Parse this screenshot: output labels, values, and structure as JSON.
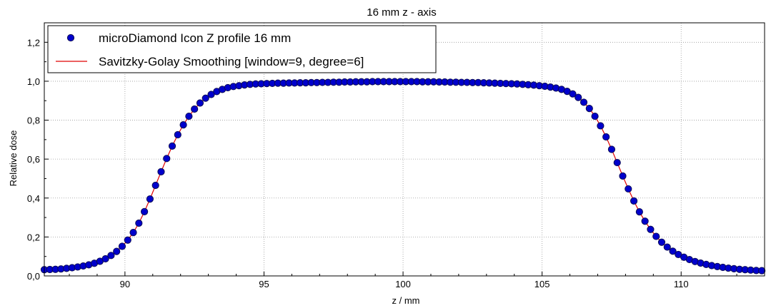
{
  "chart_data": {
    "type": "scatter",
    "title": "16 mm z - axis",
    "xlabel": "z / mm",
    "ylabel": "Relative dose",
    "xlim": [
      87.1,
      113.0
    ],
    "ylim": [
      0.0,
      1.3
    ],
    "x_ticks": [
      90,
      95,
      100,
      105,
      110
    ],
    "x_tick_labels": [
      "90",
      "95",
      "100",
      "105",
      "110"
    ],
    "y_ticks": [
      0.0,
      0.2,
      0.4,
      0.6,
      0.8,
      1.0,
      1.2
    ],
    "y_tick_labels": [
      "0,0",
      "0,2",
      "0,4",
      "0,6",
      "0,8",
      "1,0",
      "1,2"
    ],
    "grid": true,
    "legend_position": "top-left",
    "series": [
      {
        "name": "microDiamond Icon Z profile 16 mm",
        "style": "markers",
        "color": "#0000cc",
        "edge_color": "#0a0a55",
        "x": [
          87.1,
          87.3,
          87.5,
          87.7,
          87.9,
          88.1,
          88.3,
          88.5,
          88.7,
          88.9,
          89.1,
          89.3,
          89.5,
          89.7,
          89.9,
          90.1,
          90.3,
          90.5,
          90.7,
          90.9,
          91.1,
          91.3,
          91.5,
          91.7,
          91.9,
          92.1,
          92.3,
          92.5,
          92.7,
          92.9,
          93.1,
          93.3,
          93.5,
          93.7,
          93.9,
          94.1,
          94.3,
          94.5,
          94.7,
          94.9,
          95.1,
          95.3,
          95.5,
          95.7,
          95.9,
          96.1,
          96.3,
          96.5,
          96.7,
          96.9,
          97.1,
          97.3,
          97.5,
          97.7,
          97.9,
          98.1,
          98.3,
          98.5,
          98.7,
          98.9,
          99.1,
          99.3,
          99.5,
          99.7,
          99.9,
          100.1,
          100.3,
          100.5,
          100.7,
          100.9,
          101.1,
          101.3,
          101.5,
          101.7,
          101.9,
          102.1,
          102.3,
          102.5,
          102.7,
          102.9,
          103.1,
          103.3,
          103.5,
          103.7,
          103.9,
          104.1,
          104.3,
          104.5,
          104.7,
          104.9,
          105.1,
          105.3,
          105.5,
          105.7,
          105.9,
          106.1,
          106.3,
          106.5,
          106.7,
          106.9,
          107.1,
          107.3,
          107.5,
          107.7,
          107.9,
          108.1,
          108.3,
          108.5,
          108.7,
          108.9,
          109.1,
          109.3,
          109.5,
          109.7,
          109.9,
          110.1,
          110.3,
          110.5,
          110.7,
          110.9,
          111.1,
          111.3,
          111.5,
          111.7,
          111.9,
          112.1,
          112.3,
          112.5,
          112.7,
          112.9
        ],
        "y": [
          0.032,
          0.033,
          0.034,
          0.036,
          0.039,
          0.042,
          0.046,
          0.051,
          0.057,
          0.065,
          0.075,
          0.088,
          0.105,
          0.126,
          0.152,
          0.184,
          0.223,
          0.271,
          0.33,
          0.395,
          0.465,
          0.535,
          0.603,
          0.667,
          0.725,
          0.776,
          0.82,
          0.857,
          0.888,
          0.913,
          0.932,
          0.947,
          0.958,
          0.967,
          0.973,
          0.977,
          0.981,
          0.984,
          0.986,
          0.987,
          0.988,
          0.989,
          0.99,
          0.99,
          0.991,
          0.991,
          0.992,
          0.992,
          0.993,
          0.993,
          0.994,
          0.994,
          0.995,
          0.995,
          0.996,
          0.996,
          0.997,
          0.997,
          0.997,
          0.998,
          0.998,
          0.998,
          0.998,
          0.998,
          0.998,
          0.998,
          0.998,
          0.998,
          0.997,
          0.997,
          0.997,
          0.996,
          0.996,
          0.995,
          0.995,
          0.994,
          0.994,
          0.993,
          0.993,
          0.992,
          0.991,
          0.99,
          0.989,
          0.988,
          0.987,
          0.986,
          0.984,
          0.982,
          0.98,
          0.977,
          0.974,
          0.97,
          0.965,
          0.958,
          0.948,
          0.935,
          0.917,
          0.892,
          0.86,
          0.82,
          0.771,
          0.714,
          0.65,
          0.582,
          0.513,
          0.447,
          0.385,
          0.329,
          0.281,
          0.239,
          0.203,
          0.173,
          0.148,
          0.127,
          0.11,
          0.096,
          0.084,
          0.074,
          0.066,
          0.059,
          0.053,
          0.048,
          0.044,
          0.04,
          0.037,
          0.034,
          0.032,
          0.03,
          0.028,
          0.027
        ]
      },
      {
        "name": "Savitzky-Golay Smoothing [window=9, degree=6]",
        "style": "line",
        "color": "#e00000",
        "x": [
          87.1,
          87.3,
          87.5,
          87.7,
          87.9,
          88.1,
          88.3,
          88.5,
          88.7,
          88.9,
          89.1,
          89.3,
          89.5,
          89.7,
          89.9,
          90.1,
          90.3,
          90.5,
          90.7,
          90.9,
          91.1,
          91.3,
          91.5,
          91.7,
          91.9,
          92.1,
          92.3,
          92.5,
          92.7,
          92.9,
          93.1,
          93.3,
          93.5,
          93.7,
          93.9,
          94.1,
          94.3,
          94.5,
          94.7,
          94.9,
          95.1,
          95.3,
          95.5,
          95.7,
          95.9,
          96.1,
          96.3,
          96.5,
          96.7,
          96.9,
          97.1,
          97.3,
          97.5,
          97.7,
          97.9,
          98.1,
          98.3,
          98.5,
          98.7,
          98.9,
          99.1,
          99.3,
          99.5,
          99.7,
          99.9,
          100.1,
          100.3,
          100.5,
          100.7,
          100.9,
          101.1,
          101.3,
          101.5,
          101.7,
          101.9,
          102.1,
          102.3,
          102.5,
          102.7,
          102.9,
          103.1,
          103.3,
          103.5,
          103.7,
          103.9,
          104.1,
          104.3,
          104.5,
          104.7,
          104.9,
          105.1,
          105.3,
          105.5,
          105.7,
          105.9,
          106.1,
          106.3,
          106.5,
          106.7,
          106.9,
          107.1,
          107.3,
          107.5,
          107.7,
          107.9,
          108.1,
          108.3,
          108.5,
          108.7,
          108.9,
          109.1,
          109.3,
          109.5,
          109.7,
          109.9,
          110.1,
          110.3,
          110.5,
          110.7,
          110.9,
          111.1,
          111.3,
          111.5,
          111.7,
          111.9,
          112.1,
          112.3,
          112.5,
          112.7,
          112.9
        ],
        "y": [
          0.032,
          0.033,
          0.034,
          0.036,
          0.039,
          0.042,
          0.046,
          0.051,
          0.057,
          0.065,
          0.075,
          0.088,
          0.105,
          0.126,
          0.152,
          0.184,
          0.223,
          0.271,
          0.33,
          0.395,
          0.465,
          0.535,
          0.603,
          0.667,
          0.725,
          0.776,
          0.82,
          0.857,
          0.888,
          0.913,
          0.932,
          0.947,
          0.958,
          0.967,
          0.973,
          0.977,
          0.981,
          0.984,
          0.986,
          0.987,
          0.988,
          0.989,
          0.99,
          0.99,
          0.991,
          0.991,
          0.992,
          0.992,
          0.993,
          0.993,
          0.994,
          0.994,
          0.995,
          0.995,
          0.996,
          0.996,
          0.997,
          0.997,
          0.997,
          0.998,
          0.998,
          0.998,
          0.998,
          0.998,
          0.998,
          0.998,
          0.998,
          0.998,
          0.997,
          0.997,
          0.997,
          0.996,
          0.996,
          0.995,
          0.995,
          0.994,
          0.994,
          0.993,
          0.993,
          0.992,
          0.991,
          0.99,
          0.989,
          0.988,
          0.987,
          0.986,
          0.984,
          0.982,
          0.98,
          0.977,
          0.974,
          0.97,
          0.965,
          0.958,
          0.948,
          0.935,
          0.917,
          0.892,
          0.86,
          0.82,
          0.771,
          0.714,
          0.65,
          0.582,
          0.513,
          0.447,
          0.385,
          0.329,
          0.281,
          0.239,
          0.203,
          0.173,
          0.148,
          0.127,
          0.11,
          0.096,
          0.084,
          0.074,
          0.066,
          0.059,
          0.053,
          0.048,
          0.044,
          0.04,
          0.037,
          0.034,
          0.032,
          0.03,
          0.028,
          0.027
        ]
      }
    ]
  }
}
